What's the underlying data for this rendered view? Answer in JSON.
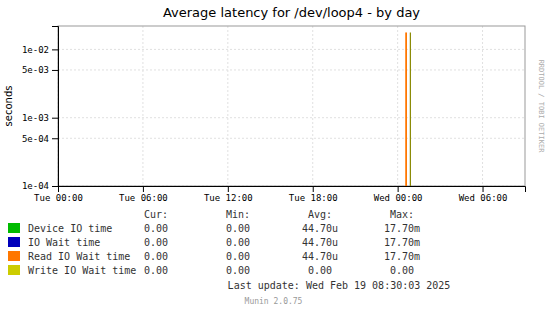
{
  "chart_data": {
    "type": "line",
    "title": "Average latency for /dev/loop4 - by day",
    "y_label": "seconds",
    "log": "y",
    "grid": true,
    "xlim": [
      0,
      33
    ],
    "xticks": [
      {
        "value": 0,
        "label": "Tue 00:00"
      },
      {
        "value": 6,
        "label": "Tue 06:00"
      },
      {
        "value": 12,
        "label": "Tue 12:00"
      },
      {
        "value": 18,
        "label": "Tue 18:00"
      },
      {
        "value": 24,
        "label": "Wed 00:00"
      },
      {
        "value": 30,
        "label": "Wed 06:00"
      }
    ],
    "ylim": [
      0.0001,
      0.022
    ],
    "yticks": [
      {
        "value": 0.0001,
        "label": "1e-04"
      },
      {
        "value": 0.0005,
        "label": "5e-04"
      },
      {
        "value": 0.001,
        "label": "1e-03"
      },
      {
        "value": 0.005,
        "label": "5e-03"
      },
      {
        "value": 0.01,
        "label": "1e-02"
      }
    ],
    "series": [
      {
        "color": "#ff7700",
        "x": [
          24.6,
          24.6
        ],
        "values": [
          0.0001,
          0.0177
        ]
      },
      {
        "color": "#888800",
        "x": [
          24.9,
          24.9
        ],
        "values": [
          0.0001,
          0.0177
        ]
      }
    ],
    "table": {
      "headers": [
        "Cur:",
        "Min:",
        "Avg:",
        "Max:"
      ],
      "rows": [
        {
          "label": "Device IO time",
          "color": "#00bb00",
          "values": [
            "0.00",
            "0.00",
            "44.70u",
            "17.70m"
          ]
        },
        {
          "label": "IO Wait time",
          "color": "#0000bb",
          "values": [
            "0.00",
            "0.00",
            "44.70u",
            "17.70m"
          ]
        },
        {
          "label": "Read IO Wait time",
          "color": "#ff7700",
          "values": [
            "0.00",
            "0.00",
            "44.70u",
            "17.70m"
          ]
        },
        {
          "label": "Write IO Wait time",
          "color": "#cccc00",
          "values": [
            "0.00",
            "0.00",
            "0.00",
            "0.00"
          ]
        }
      ]
    },
    "annotations": [
      "Last update: Wed Feb 19 08:30:03 2025",
      "Munin 2.0.75",
      "RRDTOOL / TOBI OETIKER"
    ]
  }
}
